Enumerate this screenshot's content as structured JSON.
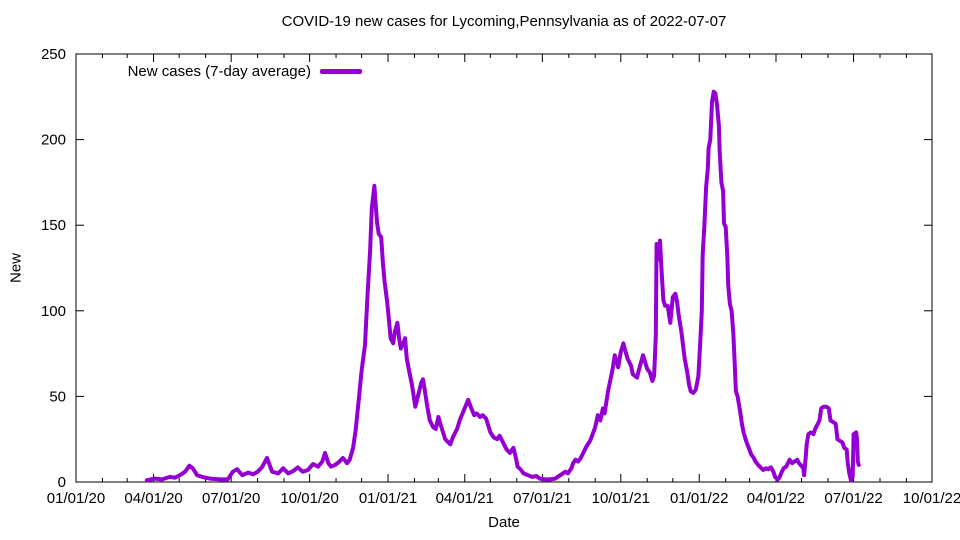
{
  "title": "COVID-19 new cases for Lycoming,Pennsylvania as of 2022-07-07",
  "chart_data": {
    "type": "line",
    "title": "COVID-19 new cases for Lycoming,Pennsylvania as of 2022-07-07",
    "xlabel": "Date",
    "ylabel": "New",
    "grid": false,
    "legend_position": "top-left-inside",
    "x_range": [
      "2020-01-01",
      "2022-10-01"
    ],
    "ylim": [
      0,
      250
    ],
    "y_ticks": [
      0,
      50,
      100,
      150,
      200,
      250
    ],
    "x_ticks": [
      {
        "label": "01/01/20",
        "date": "2020-01-01"
      },
      {
        "label": "04/01/20",
        "date": "2020-04-01"
      },
      {
        "label": "07/01/20",
        "date": "2020-07-01"
      },
      {
        "label": "10/01/20",
        "date": "2020-10-01"
      },
      {
        "label": "01/01/21",
        "date": "2021-01-01"
      },
      {
        "label": "04/01/21",
        "date": "2021-04-01"
      },
      {
        "label": "07/01/21",
        "date": "2021-07-01"
      },
      {
        "label": "10/01/21",
        "date": "2021-10-01"
      },
      {
        "label": "01/01/22",
        "date": "2022-01-01"
      },
      {
        "label": "04/01/22",
        "date": "2022-04-01"
      },
      {
        "label": "07/01/22",
        "date": "2022-07-01"
      },
      {
        "label": "10/01/22",
        "date": "2022-10-01"
      }
    ],
    "minor_x_ticks": "monthly",
    "series": [
      {
        "name": "New cases (7-day average)",
        "color": "#9400D3",
        "points": [
          [
            "2020-03-24",
            1
          ],
          [
            "2020-04-02",
            2
          ],
          [
            "2020-04-11",
            1.5
          ],
          [
            "2020-04-20",
            3
          ],
          [
            "2020-04-26",
            2.5
          ],
          [
            "2020-05-02",
            4
          ],
          [
            "2020-05-08",
            6
          ],
          [
            "2020-05-13",
            9.5
          ],
          [
            "2020-05-17",
            8
          ],
          [
            "2020-05-22",
            4
          ],
          [
            "2020-05-28",
            3
          ],
          [
            "2020-06-06",
            2
          ],
          [
            "2020-06-18",
            1.5
          ],
          [
            "2020-06-27",
            1.5
          ],
          [
            "2020-07-03",
            6
          ],
          [
            "2020-07-08",
            7.5
          ],
          [
            "2020-07-14",
            4
          ],
          [
            "2020-07-21",
            5.5
          ],
          [
            "2020-07-27",
            4.5
          ],
          [
            "2020-08-01",
            6
          ],
          [
            "2020-08-06",
            8.5
          ],
          [
            "2020-08-12",
            14
          ],
          [
            "2020-08-18",
            6
          ],
          [
            "2020-08-25",
            5
          ],
          [
            "2020-08-31",
            8
          ],
          [
            "2020-09-06",
            5
          ],
          [
            "2020-09-12",
            6.5
          ],
          [
            "2020-09-17",
            8.5
          ],
          [
            "2020-09-23",
            6
          ],
          [
            "2020-09-29",
            7
          ],
          [
            "2020-10-05",
            10.5
          ],
          [
            "2020-10-11",
            9
          ],
          [
            "2020-10-16",
            12
          ],
          [
            "2020-10-19",
            17
          ],
          [
            "2020-10-23",
            11
          ],
          [
            "2020-10-26",
            9
          ],
          [
            "2020-10-31",
            10
          ],
          [
            "2020-11-04",
            11.5
          ],
          [
            "2020-11-09",
            14
          ],
          [
            "2020-11-14",
            11
          ],
          [
            "2020-11-17",
            13
          ],
          [
            "2020-11-21",
            20
          ],
          [
            "2020-11-24",
            30
          ],
          [
            "2020-11-28",
            50
          ],
          [
            "2020-12-01",
            65
          ],
          [
            "2020-12-05",
            80
          ],
          [
            "2020-12-08",
            110
          ],
          [
            "2020-12-11",
            135
          ],
          [
            "2020-12-13",
            160
          ],
          [
            "2020-12-16",
            173
          ],
          [
            "2020-12-17",
            165
          ],
          [
            "2020-12-19",
            152
          ],
          [
            "2020-12-21",
            145
          ],
          [
            "2020-12-24",
            143
          ],
          [
            "2020-12-26",
            128
          ],
          [
            "2020-12-28",
            117
          ],
          [
            "2020-12-31",
            105
          ],
          [
            "2021-01-02",
            95
          ],
          [
            "2021-01-04",
            84
          ],
          [
            "2021-01-07",
            81
          ],
          [
            "2021-01-09",
            88
          ],
          [
            "2021-01-12",
            93
          ],
          [
            "2021-01-14",
            84
          ],
          [
            "2021-01-16",
            78
          ],
          [
            "2021-01-19",
            81
          ],
          [
            "2021-01-21",
            84
          ],
          [
            "2021-01-23",
            72
          ],
          [
            "2021-01-26",
            64
          ],
          [
            "2021-01-29",
            57
          ],
          [
            "2021-02-02",
            44
          ],
          [
            "2021-02-05",
            50
          ],
          [
            "2021-02-09",
            58
          ],
          [
            "2021-02-11",
            60
          ],
          [
            "2021-02-13",
            54
          ],
          [
            "2021-02-16",
            44
          ],
          [
            "2021-02-19",
            36
          ],
          [
            "2021-02-23",
            32
          ],
          [
            "2021-02-26",
            31
          ],
          [
            "2021-03-01",
            38
          ],
          [
            "2021-03-04",
            33
          ],
          [
            "2021-03-09",
            25
          ],
          [
            "2021-03-15",
            22
          ],
          [
            "2021-03-18",
            26
          ],
          [
            "2021-03-23",
            31
          ],
          [
            "2021-03-26",
            36
          ],
          [
            "2021-03-31",
            42
          ],
          [
            "2021-04-05",
            48
          ],
          [
            "2021-04-08",
            44
          ],
          [
            "2021-04-12",
            39
          ],
          [
            "2021-04-15",
            40
          ],
          [
            "2021-04-19",
            38
          ],
          [
            "2021-04-22",
            39
          ],
          [
            "2021-04-26",
            37
          ],
          [
            "2021-05-01",
            29
          ],
          [
            "2021-05-05",
            26
          ],
          [
            "2021-05-09",
            25
          ],
          [
            "2021-05-12",
            27
          ],
          [
            "2021-05-16",
            23
          ],
          [
            "2021-05-20",
            19
          ],
          [
            "2021-05-24",
            17
          ],
          [
            "2021-05-28",
            20
          ],
          [
            "2021-05-31",
            14
          ],
          [
            "2021-06-02",
            9
          ],
          [
            "2021-06-06",
            7
          ],
          [
            "2021-06-09",
            5
          ],
          [
            "2021-06-14",
            4
          ],
          [
            "2021-06-19",
            3
          ],
          [
            "2021-06-24",
            3.5
          ],
          [
            "2021-06-28",
            2
          ],
          [
            "2021-07-04",
            1.5
          ],
          [
            "2021-07-10",
            1.5
          ],
          [
            "2021-07-16",
            2
          ],
          [
            "2021-07-22",
            4
          ],
          [
            "2021-07-28",
            6
          ],
          [
            "2021-07-31",
            5
          ],
          [
            "2021-08-04",
            8
          ],
          [
            "2021-08-06",
            11
          ],
          [
            "2021-08-09",
            13
          ],
          [
            "2021-08-12",
            12
          ],
          [
            "2021-08-15",
            14
          ],
          [
            "2021-08-19",
            18
          ],
          [
            "2021-08-22",
            21
          ],
          [
            "2021-08-26",
            24
          ],
          [
            "2021-08-29",
            28
          ],
          [
            "2021-09-01",
            32
          ],
          [
            "2021-09-04",
            39
          ],
          [
            "2021-09-07",
            36
          ],
          [
            "2021-09-10",
            43
          ],
          [
            "2021-09-12",
            40
          ],
          [
            "2021-09-16",
            53
          ],
          [
            "2021-09-21",
            65
          ],
          [
            "2021-09-24",
            74
          ],
          [
            "2021-09-28",
            67
          ],
          [
            "2021-10-01",
            76
          ],
          [
            "2021-10-04",
            81
          ],
          [
            "2021-10-06",
            77
          ],
          [
            "2021-10-09",
            72
          ],
          [
            "2021-10-13",
            68
          ],
          [
            "2021-10-15",
            63
          ],
          [
            "2021-10-20",
            61
          ],
          [
            "2021-10-23",
            67
          ],
          [
            "2021-10-27",
            74
          ],
          [
            "2021-10-29",
            71
          ],
          [
            "2021-11-01",
            66
          ],
          [
            "2021-11-04",
            64
          ],
          [
            "2021-11-07",
            59
          ],
          [
            "2021-11-09",
            62
          ],
          [
            "2021-11-11",
            85
          ],
          [
            "2021-11-12",
            139
          ],
          [
            "2021-11-14",
            130
          ],
          [
            "2021-11-16",
            141
          ],
          [
            "2021-11-18",
            122
          ],
          [
            "2021-11-20",
            106
          ],
          [
            "2021-11-22",
            103
          ],
          [
            "2021-11-25",
            103
          ],
          [
            "2021-11-28",
            93
          ],
          [
            "2021-12-01",
            108
          ],
          [
            "2021-12-04",
            110
          ],
          [
            "2021-12-06",
            105
          ],
          [
            "2021-12-08",
            97
          ],
          [
            "2021-12-11",
            88
          ],
          [
            "2021-12-13",
            80
          ],
          [
            "2021-12-15",
            72
          ],
          [
            "2021-12-18",
            64
          ],
          [
            "2021-12-20",
            57
          ],
          [
            "2021-12-22",
            53
          ],
          [
            "2021-12-25",
            52
          ],
          [
            "2021-12-28",
            54
          ],
          [
            "2021-12-31",
            62
          ],
          [
            "2022-01-02",
            80
          ],
          [
            "2022-01-04",
            100
          ],
          [
            "2022-01-05",
            133
          ],
          [
            "2022-01-07",
            150
          ],
          [
            "2022-01-09",
            172
          ],
          [
            "2022-01-11",
            183
          ],
          [
            "2022-01-12",
            195
          ],
          [
            "2022-01-14",
            200
          ],
          [
            "2022-01-16",
            222
          ],
          [
            "2022-01-18",
            228
          ],
          [
            "2022-01-20",
            227
          ],
          [
            "2022-01-22",
            220
          ],
          [
            "2022-01-24",
            208
          ],
          [
            "2022-01-25",
            193
          ],
          [
            "2022-01-27",
            175
          ],
          [
            "2022-01-29",
            170
          ],
          [
            "2022-01-30",
            151
          ],
          [
            "2022-02-01",
            149
          ],
          [
            "2022-02-03",
            131
          ],
          [
            "2022-02-04",
            115
          ],
          [
            "2022-02-06",
            104
          ],
          [
            "2022-02-08",
            100
          ],
          [
            "2022-02-10",
            87
          ],
          [
            "2022-02-11",
            76
          ],
          [
            "2022-02-13",
            53
          ],
          [
            "2022-02-15",
            50
          ],
          [
            "2022-02-18",
            41
          ],
          [
            "2022-02-20",
            34
          ],
          [
            "2022-02-22",
            29
          ],
          [
            "2022-02-25",
            24
          ],
          [
            "2022-02-28",
            20
          ],
          [
            "2022-03-03",
            16
          ],
          [
            "2022-03-06",
            14
          ],
          [
            "2022-03-08",
            12
          ],
          [
            "2022-03-11",
            10
          ],
          [
            "2022-03-14",
            8.5
          ],
          [
            "2022-03-17",
            7
          ],
          [
            "2022-03-20",
            8
          ],
          [
            "2022-03-23",
            7.5
          ],
          [
            "2022-03-26",
            8.5
          ],
          [
            "2022-03-29",
            6
          ],
          [
            "2022-03-31",
            3
          ],
          [
            "2022-04-03",
            1.5
          ],
          [
            "2022-04-05",
            2.5
          ],
          [
            "2022-04-07",
            5
          ],
          [
            "2022-04-10",
            8
          ],
          [
            "2022-04-13",
            9
          ],
          [
            "2022-04-15",
            11
          ],
          [
            "2022-04-17",
            13
          ],
          [
            "2022-04-20",
            11
          ],
          [
            "2022-04-23",
            12
          ],
          [
            "2022-04-26",
            13
          ],
          [
            "2022-04-28",
            11
          ],
          [
            "2022-04-30",
            10
          ],
          [
            "2022-05-03",
            8
          ],
          [
            "2022-05-04",
            4
          ],
          [
            "2022-05-06",
            15
          ],
          [
            "2022-05-07",
            22
          ],
          [
            "2022-05-09",
            28
          ],
          [
            "2022-05-12",
            29
          ],
          [
            "2022-05-15",
            28
          ],
          [
            "2022-05-17",
            31
          ],
          [
            "2022-05-20",
            34
          ],
          [
            "2022-05-22",
            36
          ],
          [
            "2022-05-24",
            43
          ],
          [
            "2022-05-27",
            44
          ],
          [
            "2022-05-30",
            44
          ],
          [
            "2022-06-02",
            43
          ],
          [
            "2022-06-04",
            36
          ],
          [
            "2022-06-07",
            35
          ],
          [
            "2022-06-10",
            34
          ],
          [
            "2022-06-12",
            25
          ],
          [
            "2022-06-15",
            24
          ],
          [
            "2022-06-18",
            23
          ],
          [
            "2022-06-20",
            20
          ],
          [
            "2022-06-23",
            19
          ],
          [
            "2022-06-24",
            12
          ],
          [
            "2022-06-26",
            5
          ],
          [
            "2022-06-28",
            1
          ],
          [
            "2022-06-30",
            3
          ],
          [
            "2022-07-01",
            28
          ],
          [
            "2022-07-04",
            29
          ],
          [
            "2022-07-05",
            25
          ],
          [
            "2022-07-06",
            12
          ],
          [
            "2022-07-07",
            10
          ]
        ]
      }
    ]
  }
}
